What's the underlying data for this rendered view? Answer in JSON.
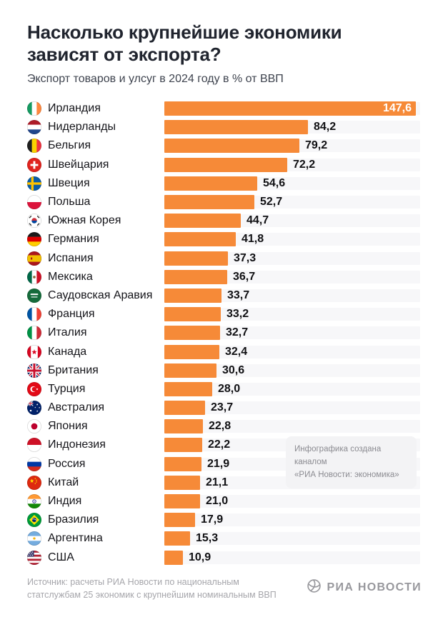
{
  "header": {
    "title_line1": "Насколько крупнейшие экономики",
    "title_line2": "зависят от экспорта?",
    "subtitle": "Экспорт товаров и улсуг в 2024 году в % от ВВП"
  },
  "chart_data": {
    "type": "bar",
    "orientation": "horizontal",
    "title": "Насколько крупнейшие экономики зависят от экспорта?",
    "subtitle": "Экспорт товаров и улсуг в 2024 году в % от ВВП",
    "unit": "% от ВВП",
    "xlim": [
      0,
      147.6
    ],
    "grid": false,
    "legend": "none",
    "bar_color": "#F68A38",
    "track_color": "#f7f7f9",
    "categories": [
      "Ирландия",
      "Нидерланды",
      "Бельгия",
      "Швейцария",
      "Швеция",
      "Польша",
      "Южная Корея",
      "Германия",
      "Испания",
      "Мексика",
      "Саудовская Аравия",
      "Франция",
      "Италия",
      "Канада",
      "Британия",
      "Турция",
      "Австралия",
      "Япония",
      "Индонезия",
      "Россия",
      "Китай",
      "Индия",
      "Бразилия",
      "Аргентина",
      "США"
    ],
    "values": [
      147.6,
      84.2,
      79.2,
      72.2,
      54.6,
      52.7,
      44.7,
      41.8,
      37.3,
      36.7,
      33.7,
      33.2,
      32.7,
      32.4,
      30.6,
      28.0,
      23.7,
      22.8,
      22.2,
      21.9,
      21.1,
      21.0,
      17.9,
      15.3,
      10.9
    ],
    "value_labels": [
      "147,6",
      "84,2",
      "79,2",
      "72,2",
      "54,6",
      "52,7",
      "44,7",
      "41,8",
      "37,3",
      "36,7",
      "33,7",
      "33,2",
      "32,7",
      "32,4",
      "30,6",
      "28,0",
      "23,7",
      "22,8",
      "22,2",
      "21,9",
      "21,1",
      "21,0",
      "17,9",
      "15,3",
      "10,9"
    ],
    "flags": [
      "flag-ireland",
      "flag-netherlands",
      "flag-belgium",
      "flag-switzerland",
      "flag-sweden",
      "flag-poland",
      "flag-south-korea",
      "flag-germany",
      "flag-spain",
      "flag-mexico",
      "flag-saudi-arabia",
      "flag-france",
      "flag-italy",
      "flag-canada",
      "flag-uk",
      "flag-turkey",
      "flag-australia",
      "flag-japan",
      "flag-indonesia",
      "flag-russia",
      "flag-china",
      "flag-india",
      "flag-brazil",
      "flag-argentina",
      "flag-usa"
    ],
    "value_label_position": "outside-right, first bar inside-right white"
  },
  "note": {
    "line1": "Инфографика создана каналом",
    "line2": "«РИА Новости: экономика»"
  },
  "footer": {
    "source_line1": "Источник: расчеты РИА Новости по национальным",
    "source_line2": "статслужбам 25 экономик с крупнейшим номинальным ВВП",
    "logo_text": "РИА НОВОСТИ",
    "logo_icon": "globe-icon"
  },
  "colors": {
    "background": "#ffffff",
    "title": "#20242e",
    "subtitle": "#3e434e",
    "bar": "#F68A38",
    "value_text": "#101013",
    "value_text_inside": "#ffffff",
    "note_bg": "#f3f3f5",
    "note_text": "#8b8b91",
    "footer_text": "#a6a6ab",
    "logo": "#98989d"
  }
}
